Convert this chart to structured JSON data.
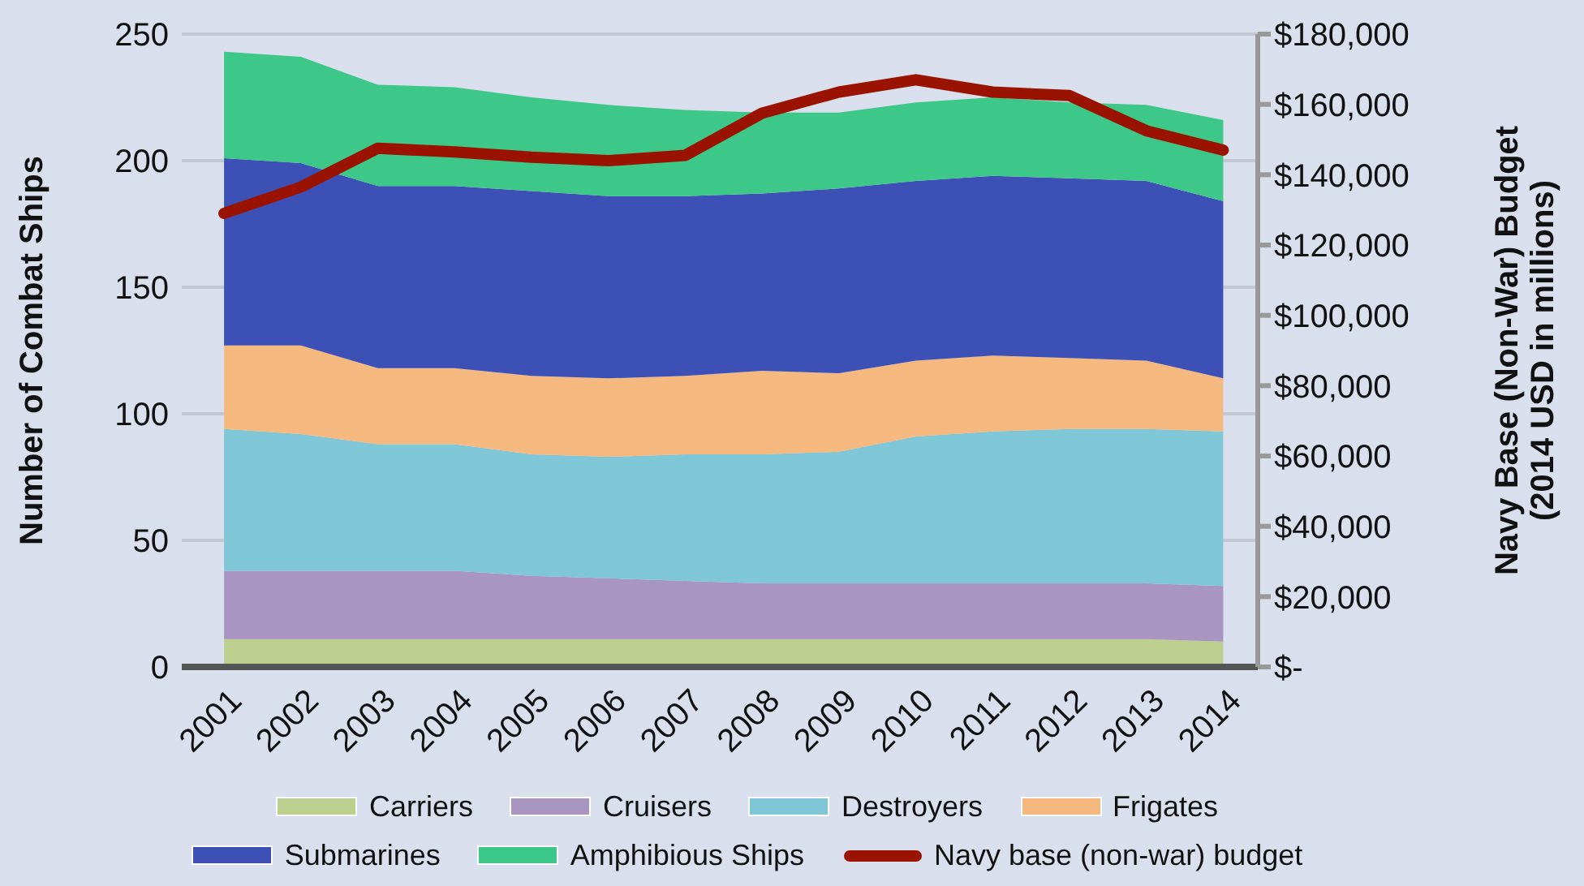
{
  "chart_data": {
    "type": "area",
    "stacked": true,
    "categories": [
      "2001",
      "2002",
      "2003",
      "2004",
      "2005",
      "2006",
      "2007",
      "2008",
      "2009",
      "2010",
      "2011",
      "2012",
      "2013",
      "2014"
    ],
    "series": [
      {
        "name": "Carriers",
        "color": "#bccf8f",
        "values": [
          11,
          11,
          11,
          11,
          11,
          11,
          11,
          11,
          11,
          11,
          11,
          11,
          11,
          10
        ]
      },
      {
        "name": "Cruisers",
        "color": "#a895c0",
        "values": [
          27,
          27,
          27,
          27,
          25,
          24,
          23,
          22,
          22,
          22,
          22,
          22,
          22,
          22
        ]
      },
      {
        "name": "Destroyers",
        "color": "#7fc6d7",
        "values": [
          56,
          54,
          50,
          50,
          48,
          48,
          50,
          51,
          52,
          58,
          60,
          61,
          61,
          61
        ]
      },
      {
        "name": "Frigates",
        "color": "#f5b97f",
        "values": [
          33,
          35,
          30,
          30,
          31,
          31,
          31,
          33,
          31,
          30,
          30,
          28,
          27,
          21
        ]
      },
      {
        "name": "Submarines",
        "color": "#3c50b5",
        "values": [
          74,
          72,
          72,
          72,
          73,
          72,
          71,
          70,
          73,
          71,
          71,
          71,
          71,
          70
        ]
      },
      {
        "name": "Amphibious Ships",
        "color": "#3dc788",
        "values": [
          42,
          42,
          40,
          39,
          37,
          36,
          34,
          32,
          30,
          31,
          31,
          30,
          30,
          32
        ]
      },
      {
        "name": "Navy base (non-war) budget",
        "type": "line",
        "axis": "y2",
        "color": "#9a1300",
        "values": [
          129000,
          136500,
          147500,
          146500,
          145000,
          144000,
          145500,
          157500,
          163500,
          167000,
          163500,
          162500,
          152500,
          147000
        ]
      }
    ],
    "ylabel": "Number of Combat Ships",
    "y2label": "Navy Base (Non-War) Budget\n(2014 USD in millions)",
    "ylim": [
      0,
      250
    ],
    "yticks": [
      0,
      50,
      100,
      150,
      200,
      250
    ],
    "y2lim": [
      0,
      180000
    ],
    "y2ticks": [
      {
        "value": 0,
        "label": "$-"
      },
      {
        "value": 20000,
        "label": "$20,000"
      },
      {
        "value": 40000,
        "label": "$40,000"
      },
      {
        "value": 60000,
        "label": "$60,000"
      },
      {
        "value": 80000,
        "label": "$80,000"
      },
      {
        "value": 100000,
        "label": "$100,000"
      },
      {
        "value": 120000,
        "label": "$120,000"
      },
      {
        "value": 140000,
        "label": "$140,000"
      },
      {
        "value": 160000,
        "label": "$160,000"
      },
      {
        "value": 180000,
        "label": "$180,000"
      }
    ],
    "grid": "y",
    "legend": "bottom"
  }
}
